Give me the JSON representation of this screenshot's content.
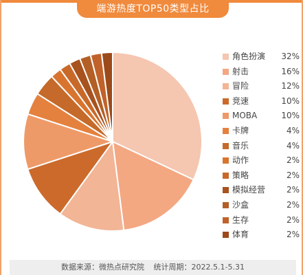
{
  "header": {
    "title": "端游热度TOP50类型占比"
  },
  "footer": {
    "source": "数据来源：微热点研究院",
    "period": "统计周期：2022.5.1-5.31"
  },
  "chart_data": {
    "type": "pie",
    "title": "端游热度TOP50类型占比",
    "legend_position": "right",
    "start_angle": "12 o'clock, clockwise",
    "slices": [
      {
        "label": "角色扮演",
        "value": 32,
        "display": "32%",
        "color": "#f5c6b0"
      },
      {
        "label": "射击",
        "value": 16,
        "display": "16%",
        "color": "#f3a882"
      },
      {
        "label": "冒险",
        "value": 12,
        "display": "12%",
        "color": "#f2b596"
      },
      {
        "label": "竞速",
        "value": 10,
        "display": "10%",
        "color": "#cc6a2c"
      },
      {
        "label": "MOBA",
        "value": 10,
        "display": "10%",
        "color": "#ee9a68"
      },
      {
        "label": "卡牌",
        "value": 4,
        "display": "4%",
        "color": "#e4813f"
      },
      {
        "label": "音乐",
        "value": 4,
        "display": "4%",
        "color": "#c56a2a"
      },
      {
        "label": "动作",
        "value": 2,
        "display": "2%",
        "color": "#d9742f"
      },
      {
        "label": "策略",
        "value": 2,
        "display": "2%",
        "color": "#c8692a"
      },
      {
        "label": "模拟经营",
        "value": 2,
        "display": "2%",
        "color": "#a8521e"
      },
      {
        "label": "沙盒",
        "value": 2,
        "display": "2%",
        "color": "#b35f25"
      },
      {
        "label": "生存",
        "value": 2,
        "display": "2%",
        "color": "#c0622a"
      },
      {
        "label": "体育",
        "value": 2,
        "display": "2%",
        "color": "#9c4a1a"
      }
    ]
  }
}
